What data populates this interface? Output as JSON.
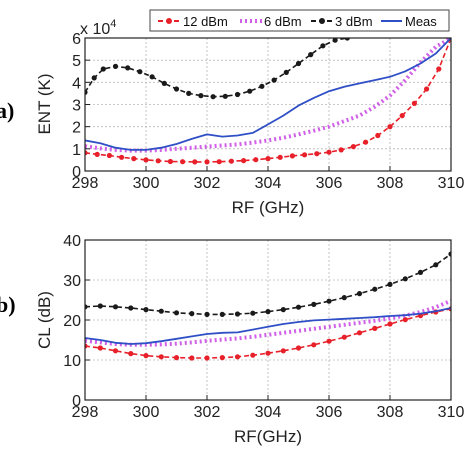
{
  "colors": {
    "12dBm": "#e8202a",
    "6dBm": "#d060e8",
    "3dBm": "#1a1a1a",
    "meas": "#2f4fc6"
  },
  "chart_data": [
    {
      "type": "line",
      "panel_label": "a)",
      "xlabel": "RF (GHz)",
      "ylabel": "ENT (K)",
      "y_multiplier": "x 10",
      "y_multiplier_exp": "4",
      "xlim": [
        298,
        310
      ],
      "ylim": [
        0,
        6
      ],
      "xticks": [
        "298",
        "300",
        "302",
        "304",
        "306",
        "308",
        "310"
      ],
      "yticks": [
        "0",
        "1",
        "2",
        "3",
        "4",
        "5",
        "6"
      ],
      "grid": true,
      "legend": "top-right",
      "legend_entries": [
        "12 dBm",
        "6 dBm",
        "3 dBm",
        "Meas"
      ],
      "series": [
        {
          "name": "12 dBm",
          "style": "dashed-dots",
          "color_key": "12dBm",
          "x": [
            298,
            298.4,
            298.8,
            299.2,
            299.6,
            300,
            300.4,
            300.8,
            301.2,
            301.6,
            302,
            302.4,
            302.8,
            303.2,
            303.6,
            304,
            304.4,
            304.8,
            305.2,
            305.6,
            306,
            306.4,
            306.8,
            307.2,
            307.6,
            308,
            308.4,
            308.8,
            309.2,
            309.6,
            310
          ],
          "y": [
            0.82,
            0.75,
            0.7,
            0.62,
            0.56,
            0.5,
            0.46,
            0.43,
            0.42,
            0.41,
            0.41,
            0.42,
            0.44,
            0.47,
            0.51,
            0.56,
            0.62,
            0.68,
            0.73,
            0.78,
            0.85,
            0.95,
            1.1,
            1.3,
            1.6,
            2.0,
            2.5,
            3.05,
            3.7,
            4.6,
            6.0
          ]
        },
        {
          "name": "6 dBm",
          "style": "dotted-thick",
          "color_key": "6dBm",
          "x": [
            298,
            298.5,
            299,
            299.5,
            300,
            300.5,
            301,
            301.5,
            302,
            302.5,
            303,
            303.5,
            304,
            304.5,
            305,
            305.5,
            306,
            306.5,
            307,
            307.5,
            308,
            308.5,
            309,
            309.5,
            310
          ],
          "y": [
            1.12,
            1.02,
            0.95,
            0.92,
            0.92,
            0.95,
            1.0,
            1.05,
            1.1,
            1.15,
            1.2,
            1.28,
            1.38,
            1.5,
            1.65,
            1.82,
            2.0,
            2.25,
            2.5,
            2.9,
            3.4,
            4.1,
            4.9,
            5.6,
            6.0
          ]
        },
        {
          "name": "3 dBm",
          "style": "dashed-dots",
          "color_key": "3dBm",
          "x": [
            298,
            298.3,
            298.6,
            299,
            299.4,
            299.8,
            300.2,
            300.6,
            301,
            301.4,
            301.8,
            302.2,
            302.6,
            303,
            303.4,
            303.8,
            304.2,
            304.6,
            305,
            305.4,
            305.8,
            306.2,
            306.6
          ],
          "y": [
            3.55,
            4.2,
            4.6,
            4.72,
            4.65,
            4.48,
            4.25,
            3.95,
            3.7,
            3.5,
            3.4,
            3.35,
            3.37,
            3.45,
            3.6,
            3.82,
            4.1,
            4.45,
            4.85,
            5.25,
            5.65,
            5.9,
            6.0
          ]
        },
        {
          "name": "Meas",
          "style": "solid",
          "color_key": "meas",
          "x": [
            298,
            298.5,
            299,
            299.5,
            300,
            300.5,
            301,
            301.5,
            302,
            302.5,
            303,
            303.5,
            304,
            304.5,
            305,
            305.5,
            306,
            306.5,
            307,
            307.5,
            308,
            308.5,
            309,
            309.5,
            310
          ],
          "y": [
            1.38,
            1.25,
            1.05,
            0.95,
            0.95,
            1.05,
            1.22,
            1.45,
            1.65,
            1.55,
            1.6,
            1.72,
            2.1,
            2.5,
            2.95,
            3.3,
            3.6,
            3.8,
            3.95,
            4.1,
            4.25,
            4.5,
            4.85,
            5.3,
            6.0
          ]
        }
      ]
    },
    {
      "type": "line",
      "panel_label": "b)",
      "xlabel": "RF(GHz)",
      "ylabel": "CL (dB)",
      "xlim": [
        298,
        310
      ],
      "ylim": [
        0,
        40
      ],
      "xticks": [
        "298",
        "300",
        "302",
        "304",
        "306",
        "308",
        "310"
      ],
      "yticks": [
        "0",
        "10",
        "20",
        "30",
        "40"
      ],
      "grid": true,
      "series": [
        {
          "name": "12 dBm",
          "style": "dashed-dots",
          "color_key": "12dBm",
          "x": [
            298,
            298.5,
            299,
            299.5,
            300,
            300.5,
            301,
            301.5,
            302,
            302.5,
            303,
            303.5,
            304,
            304.5,
            305,
            305.5,
            306,
            306.5,
            307,
            307.5,
            308,
            308.5,
            309,
            309.5,
            310
          ],
          "y": [
            13.5,
            13.0,
            12.3,
            11.6,
            11.1,
            10.8,
            10.6,
            10.5,
            10.5,
            10.6,
            10.8,
            11.2,
            11.7,
            12.3,
            13.0,
            13.8,
            14.7,
            15.7,
            16.8,
            17.9,
            19.0,
            20.1,
            21.1,
            22.0,
            22.8
          ]
        },
        {
          "name": "6 dBm",
          "style": "dotted-thick",
          "color_key": "6dBm",
          "x": [
            298,
            298.5,
            299,
            299.5,
            300,
            300.5,
            301,
            301.5,
            302,
            302.5,
            303,
            303.5,
            304,
            304.5,
            305,
            305.5,
            306,
            306.5,
            307,
            307.5,
            308,
            308.5,
            309,
            309.5,
            310
          ],
          "y": [
            14.8,
            14.4,
            14.0,
            13.8,
            13.8,
            13.9,
            14.1,
            14.4,
            14.8,
            15.1,
            15.4,
            15.8,
            16.3,
            16.8,
            17.3,
            17.8,
            18.3,
            18.8,
            19.3,
            19.8,
            20.4,
            21.1,
            22.0,
            23.2,
            24.8
          ]
        },
        {
          "name": "3 dBm",
          "style": "dashed-dots",
          "color_key": "3dBm",
          "x": [
            298,
            298.5,
            299,
            299.5,
            300,
            300.5,
            301,
            301.5,
            302,
            302.5,
            303,
            303.5,
            304,
            304.5,
            305,
            305.5,
            306,
            306.5,
            307,
            307.5,
            308,
            308.5,
            309,
            309.5,
            310
          ],
          "y": [
            23.3,
            23.5,
            23.3,
            23.0,
            22.6,
            22.2,
            21.8,
            21.6,
            21.4,
            21.4,
            21.5,
            21.7,
            22.1,
            22.6,
            23.2,
            23.9,
            24.7,
            25.6,
            26.6,
            27.7,
            28.9,
            30.3,
            31.9,
            33.8,
            36.5
          ]
        },
        {
          "name": "Meas",
          "style": "solid",
          "color_key": "meas",
          "x": [
            298,
            298.5,
            299,
            299.5,
            300,
            300.5,
            301,
            301.5,
            302,
            302.5,
            303,
            303.5,
            304,
            304.5,
            305,
            305.5,
            306,
            306.5,
            307,
            307.5,
            308,
            308.5,
            309,
            309.5,
            310
          ],
          "y": [
            15.5,
            15.0,
            14.3,
            14.0,
            14.2,
            14.7,
            15.3,
            15.9,
            16.5,
            16.8,
            16.9,
            17.6,
            18.3,
            19.0,
            19.5,
            19.9,
            20.1,
            20.3,
            20.5,
            20.7,
            21.0,
            21.2,
            21.6,
            22.2,
            23.0
          ]
        }
      ]
    }
  ]
}
